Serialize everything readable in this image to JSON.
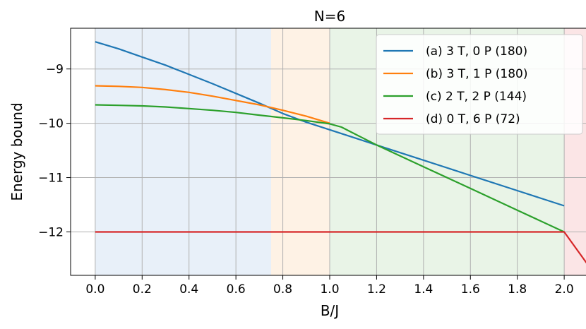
{
  "chart_data": {
    "type": "line",
    "title": "N=6",
    "xlabel": "B/J",
    "ylabel": "Energy bound",
    "xlim": [
      -0.105,
      2.105
    ],
    "ylim": [
      -12.8,
      -8.25
    ],
    "x_ticks": [
      0.0,
      0.2,
      0.4,
      0.6,
      0.8,
      1.0,
      1.2,
      1.4,
      1.6,
      1.8,
      2.0
    ],
    "x_tick_labels": [
      "0.0",
      "0.2",
      "0.4",
      "0.6",
      "0.8",
      "1.0",
      "1.2",
      "1.4",
      "1.6",
      "1.8",
      "2.0"
    ],
    "y_ticks": [
      -9,
      -10,
      -11,
      -12
    ],
    "y_tick_labels": [
      "−9",
      "−10",
      "−11",
      "−12"
    ],
    "grid": true,
    "legend_position": "top-right",
    "regions": [
      {
        "x0": 0.0,
        "x1": 0.75,
        "color": "#e8f0f9"
      },
      {
        "x0": 0.75,
        "x1": 1.0,
        "color": "#fef2e5"
      },
      {
        "x0": 1.0,
        "x1": 2.0,
        "color": "#e9f4e7"
      },
      {
        "x0": 2.0,
        "x1": 2.1,
        "color": "#fbe5e6"
      }
    ],
    "series": [
      {
        "name": "(a) 3 T, 0 P (180)",
        "color": "#1f77b4",
        "points": [
          [
            0.0,
            -8.5
          ],
          [
            0.1,
            -8.63
          ],
          [
            0.2,
            -8.78
          ],
          [
            0.3,
            -8.93
          ],
          [
            0.4,
            -9.1
          ],
          [
            0.5,
            -9.27
          ],
          [
            0.6,
            -9.45
          ],
          [
            0.7,
            -9.63
          ],
          [
            0.8,
            -9.82
          ],
          [
            0.9,
            -9.98
          ],
          [
            1.0,
            -10.12
          ],
          [
            1.2,
            -10.4
          ],
          [
            1.4,
            -10.68
          ],
          [
            1.6,
            -10.96
          ],
          [
            1.8,
            -11.24
          ],
          [
            2.0,
            -11.52
          ]
        ]
      },
      {
        "name": "(b) 3 T, 1 P (180)",
        "color": "#ff7f0e",
        "points": [
          [
            0.0,
            -9.31
          ],
          [
            0.1,
            -9.32
          ],
          [
            0.2,
            -9.34
          ],
          [
            0.3,
            -9.38
          ],
          [
            0.4,
            -9.43
          ],
          [
            0.5,
            -9.5
          ],
          [
            0.6,
            -9.58
          ],
          [
            0.7,
            -9.66
          ],
          [
            0.8,
            -9.76
          ],
          [
            0.9,
            -9.87
          ],
          [
            1.0,
            -10.0
          ]
        ]
      },
      {
        "name": "(c) 2 T, 2 P (144)",
        "color": "#2ca02c",
        "points": [
          [
            0.0,
            -9.66
          ],
          [
            0.1,
            -9.67
          ],
          [
            0.2,
            -9.68
          ],
          [
            0.3,
            -9.7
          ],
          [
            0.4,
            -9.73
          ],
          [
            0.5,
            -9.76
          ],
          [
            0.6,
            -9.8
          ],
          [
            0.7,
            -9.85
          ],
          [
            0.8,
            -9.9
          ],
          [
            0.9,
            -9.95
          ],
          [
            1.0,
            -10.01
          ],
          [
            1.05,
            -10.07
          ],
          [
            1.2,
            -10.4
          ],
          [
            1.4,
            -10.8
          ],
          [
            1.6,
            -11.2
          ],
          [
            1.8,
            -11.6
          ],
          [
            2.0,
            -12.0
          ]
        ]
      },
      {
        "name": "(d) 0 T, 6 P (72)",
        "color": "#d62728",
        "points": [
          [
            0.0,
            -12.0
          ],
          [
            2.0,
            -12.0
          ],
          [
            2.1,
            -12.6
          ]
        ]
      }
    ]
  }
}
